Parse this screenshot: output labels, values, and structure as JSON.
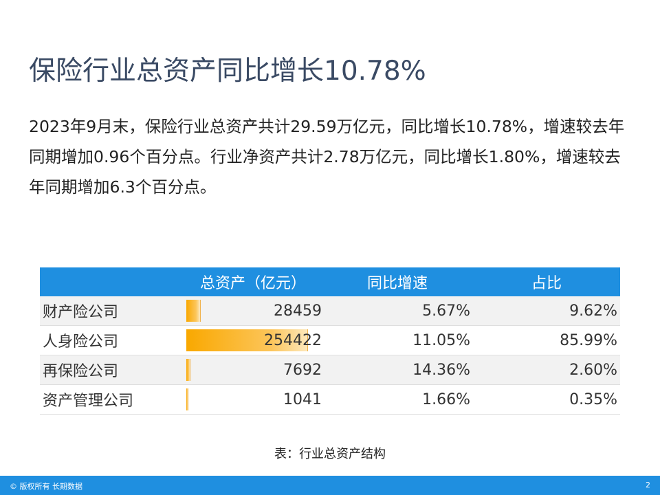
{
  "title": "保险行业总资产同比增长10.78%",
  "body_text": "2023年9月末，保险行业总资产共计29.59万亿元，同比增长10.78%，增速较去年同期增加0.96个百分点。行业净资产共计2.78万亿元，同比增长1.80%，增速较去年同期增加6.3个百分点。",
  "table": {
    "headers": [
      "",
      "总资产（亿元）",
      "同比增速",
      "占比"
    ],
    "rows": [
      {
        "name": "财产险公司",
        "assets": "28459",
        "growth": "5.67%",
        "share": "9.62%"
      },
      {
        "name": "人身险公司",
        "assets": "254422",
        "growth": "11.05%",
        "share": "85.99%"
      },
      {
        "name": "再保险公司",
        "assets": "7692",
        "growth": "14.36%",
        "share": "2.60%"
      },
      {
        "name": "资产管理公司",
        "assets": "1041",
        "growth": "1.66%",
        "share": "0.35%"
      }
    ],
    "bar_color": "#f9a800",
    "header_color": "#1f8fe0"
  },
  "caption": "表：行业总资产结构",
  "footer": {
    "copyright": "© 版权所有 长期数据",
    "page_number": "2",
    "color": "#1f8fe0"
  }
}
